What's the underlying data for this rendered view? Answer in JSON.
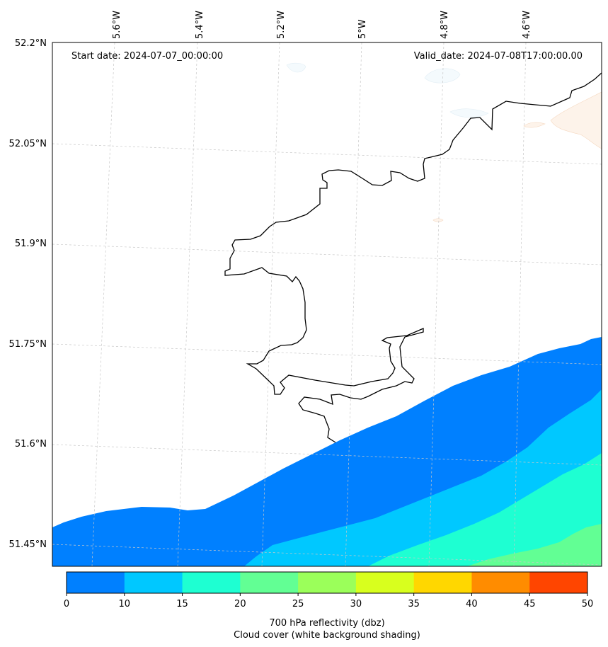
{
  "map": {
    "start_date": "Start date: 2024-07-07_00:00:00",
    "valid_date": "Valid_date: 2024-07-08T17:00:00.00",
    "lon_labels": [
      "5.6°W",
      "5.4°W",
      "5.2°W",
      "5°W",
      "4.8°W",
      "4.6°W"
    ],
    "lat_labels": [
      "52.2°N",
      "52.05°N",
      "51.9°N",
      "51.75°N",
      "51.6°N",
      "51.45°N"
    ]
  },
  "colorbar": {
    "levels": [
      0,
      10,
      15,
      20,
      25,
      30,
      35,
      40,
      45,
      50
    ],
    "tick_labels": [
      "0",
      "10",
      "15",
      "20",
      "25",
      "30",
      "35",
      "40",
      "45",
      "50"
    ],
    "colors": [
      "#0080ff",
      "#00c8ff",
      "#1effd2",
      "#62ff94",
      "#9bff5a",
      "#d8ff1e",
      "#ffd700",
      "#ff8c00",
      "#ff4500"
    ],
    "label_line1": "700 hPa reflectivity (dbz)",
    "label_line2": "Cloud cover (white background shading)"
  },
  "colors": {
    "coastline": "#000000",
    "grid": "#c8c8c8",
    "cloud_tint": "#fdf3ea"
  }
}
